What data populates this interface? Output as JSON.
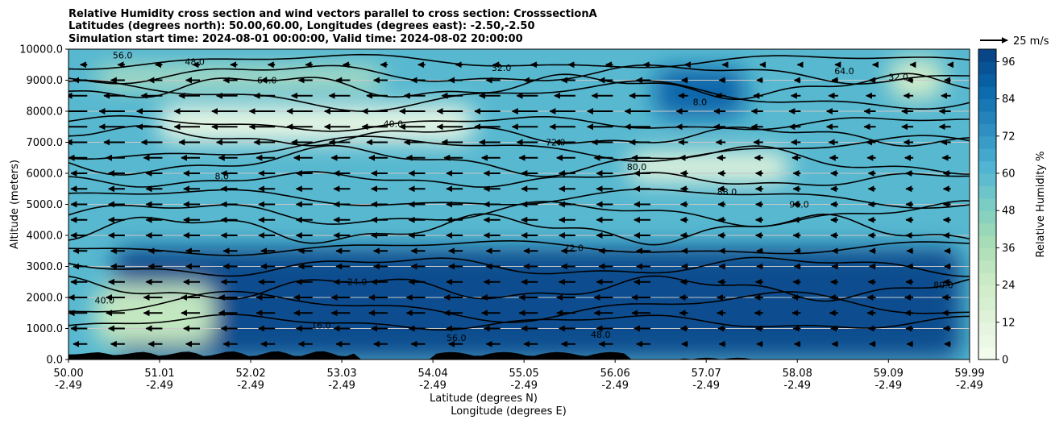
{
  "chart_data": {
    "type": "heatmap",
    "title_lines": [
      "Relative Humidity cross section and wind vectors parallel to cross section: CrosssectionA",
      "Latitudes (degrees north): 50.00,60.00, Longitudes (degrees east): -2.50,-2.50",
      "Simulation start time: 2024-08-01 00:00:00, Valid time: 2024-08-02 20:00:00"
    ],
    "ylabel": "Altitude (meters)",
    "xlabel_lines": [
      "Latitude (degrees N)",
      "Longitude (degrees E)"
    ],
    "ylim": [
      0,
      10000
    ],
    "xlim": [
      50.0,
      59.99
    ],
    "y_ticks": [
      "0.0",
      "1000.0",
      "2000.0",
      "3000.0",
      "4000.0",
      "5000.0",
      "6000.0",
      "7000.0",
      "8000.0",
      "9000.0",
      "10000.0"
    ],
    "x_ticks": [
      {
        "lat": "50.00",
        "lon": "-2.49"
      },
      {
        "lat": "51.01",
        "lon": "-2.49"
      },
      {
        "lat": "52.02",
        "lon": "-2.49"
      },
      {
        "lat": "53.03",
        "lon": "-2.49"
      },
      {
        "lat": "54.04",
        "lon": "-2.49"
      },
      {
        "lat": "55.05",
        "lon": "-2.49"
      },
      {
        "lat": "56.06",
        "lon": "-2.49"
      },
      {
        "lat": "57.07",
        "lon": "-2.49"
      },
      {
        "lat": "58.08",
        "lon": "-2.49"
      },
      {
        "lat": "59.09",
        "lon": "-2.49"
      },
      {
        "lat": "59.99",
        "lon": "-2.49"
      }
    ],
    "grid": "horizontal",
    "colorbar": {
      "label": "Relative Humidity %",
      "ticks": [
        "0",
        "12",
        "24",
        "36",
        "48",
        "60",
        "72",
        "84",
        "96"
      ],
      "levels": [
        0,
        4,
        8,
        12,
        16,
        20,
        24,
        28,
        32,
        36,
        40,
        44,
        48,
        52,
        56,
        60,
        64,
        68,
        72,
        76,
        80,
        84,
        88,
        92,
        96,
        100
      ],
      "range": [
        0,
        100
      ],
      "colors": [
        "#f7fcf0",
        "#e0f3db",
        "#ccebc5",
        "#a8ddb5",
        "#7bccc4",
        "#4eb3d3",
        "#2b8cbe",
        "#0868ac",
        "#084081"
      ]
    },
    "quiver_key": "25 m/s",
    "contour_labels": [
      "56.0",
      "48.0",
      "64.0",
      "32.0",
      "40.0",
      "8.0",
      "72.0",
      "80.0",
      "88.0",
      "96.0",
      "24.0",
      "16.0"
    ],
    "rh_fields": [
      {
        "lat": [
          51.0,
          54.5
        ],
        "alt": [
          7000,
          8200
        ],
        "rh": 8
      },
      {
        "lat": [
          50.3,
          53.5
        ],
        "alt": [
          8800,
          9400
        ],
        "rh": 30
      },
      {
        "lat": [
          56.2,
          58.0
        ],
        "alt": [
          5700,
          6700
        ],
        "rh": 12
      },
      {
        "lat": [
          56.5,
          57.5
        ],
        "alt": [
          7800,
          9400
        ],
        "rh": 88
      },
      {
        "lat": [
          50.5,
          59.9
        ],
        "alt": [
          0,
          3600
        ],
        "rh": 96
      },
      {
        "lat": [
          50.3,
          51.6
        ],
        "alt": [
          500,
          2400
        ],
        "rh": 28
      },
      {
        "lat": [
          59.1,
          59.7
        ],
        "alt": [
          8400,
          9700
        ],
        "rh": 22
      }
    ],
    "wind_rows_alt": [
      500,
      1000,
      1500,
      2000,
      2500,
      3000,
      3500,
      4000,
      4500,
      5000,
      5500,
      6000,
      6500,
      7000,
      7500,
      8000,
      8500,
      9000,
      9500
    ],
    "wind_speed_east_ms": [
      -12,
      -14,
      -16,
      -16,
      -14,
      -12,
      -12,
      -14,
      -14,
      -14,
      -14,
      -14,
      -16,
      -18,
      -22,
      -22,
      -18,
      -12,
      -6
    ]
  }
}
